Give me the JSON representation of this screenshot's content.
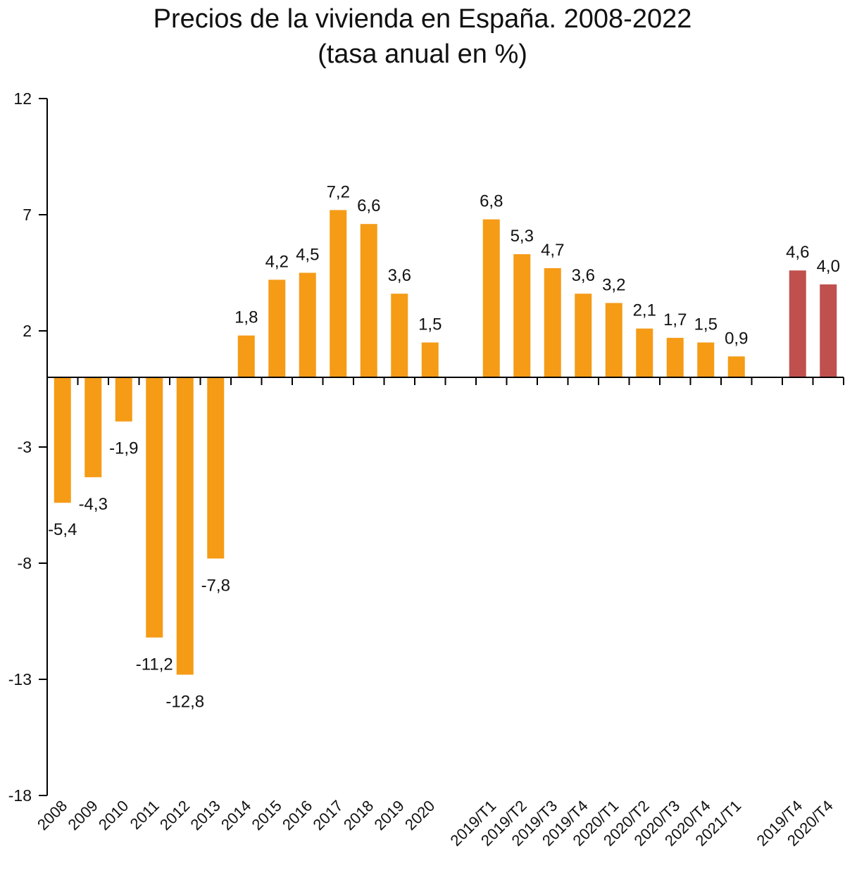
{
  "chart_data": {
    "type": "bar",
    "title": "Precios de la vivienda en España. 2008-2022",
    "subtitle": "(tasa anual en %)",
    "xlabel": "",
    "ylabel": "",
    "ylim": [
      -18,
      12
    ],
    "yticks": [
      "12",
      "7",
      "2",
      "-3",
      "-8",
      "-13",
      "-18"
    ],
    "grid": false,
    "categories": [
      "2008",
      "2009",
      "2010",
      "2011",
      "2012",
      "2013",
      "2014",
      "2015",
      "2016",
      "2017",
      "2018",
      "2019",
      "2020",
      "",
      "2019/T1",
      "2019/T2",
      "2019/T3",
      "2019/T4",
      "2020/T1",
      "2020/T2",
      "2020/T3",
      "2020/T4",
      "2021/T1",
      "",
      "2019/T4",
      "2020/T4"
    ],
    "values": [
      -5.4,
      -4.3,
      -1.9,
      -11.2,
      -12.8,
      -7.8,
      1.8,
      4.2,
      4.5,
      7.2,
      6.6,
      3.6,
      1.5,
      null,
      6.8,
      5.3,
      4.7,
      3.6,
      3.2,
      2.1,
      1.7,
      1.5,
      0.9,
      null,
      4.6,
      4.0
    ],
    "labels": [
      "-5,4",
      "-4,3",
      "-1,9",
      "-11,2",
      "-12,8",
      "-7,8",
      "1,8",
      "4,2",
      "4,5",
      "7,2",
      "6,6",
      "3,6",
      "1,5",
      "",
      "6,8",
      "5,3",
      "4,7",
      "3,6",
      "3,2",
      "2,1",
      "1,7",
      "1,5",
      "0,9",
      "",
      "4,6",
      "4,0"
    ],
    "colors": [
      "#F59B16",
      "#F59B16",
      "#F59B16",
      "#F59B16",
      "#F59B16",
      "#F59B16",
      "#F59B16",
      "#F59B16",
      "#F59B16",
      "#F59B16",
      "#F59B16",
      "#F59B16",
      "#F59B16",
      "",
      "#F59B16",
      "#F59B16",
      "#F59B16",
      "#F59B16",
      "#F59B16",
      "#F59B16",
      "#F59B16",
      "#F59B16",
      "#F59B16",
      "",
      "#C0504D",
      "#C0504D"
    ],
    "axis_color": "#000000"
  }
}
